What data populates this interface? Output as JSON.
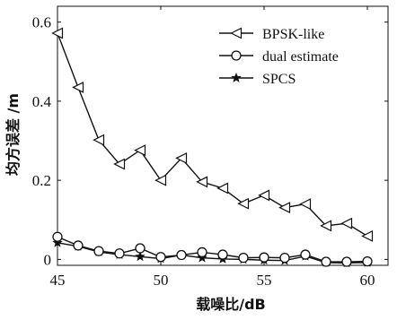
{
  "chart_data": {
    "type": "line",
    "title": "",
    "xlabel": "载噪比/dB",
    "ylabel": "均方误差 /m",
    "xlim": [
      45,
      61
    ],
    "ylim": [
      -0.015,
      0.64
    ],
    "x_ticks": [
      "45",
      "50",
      "55",
      "60"
    ],
    "y_ticks": [
      "0",
      "0.2",
      "0.4",
      "0.6"
    ],
    "legend_position": "top-right",
    "grid": false,
    "x": [
      45,
      46,
      47,
      48,
      49,
      50,
      51,
      52,
      53,
      54,
      55,
      56,
      57,
      58,
      59,
      60
    ],
    "series": [
      {
        "name": "BPSK-like",
        "marker": "triangle-left",
        "values": [
          0.572,
          0.435,
          0.302,
          0.241,
          0.276,
          0.2,
          0.256,
          0.196,
          0.18,
          0.141,
          0.162,
          0.131,
          0.14,
          0.085,
          0.091,
          0.059
        ]
      },
      {
        "name": "dual estimate",
        "marker": "circle",
        "values": [
          0.057,
          0.035,
          0.021,
          0.015,
          0.028,
          0.006,
          0.011,
          0.018,
          0.012,
          0.004,
          0.005,
          0.004,
          0.012,
          -0.006,
          -0.006,
          -0.005
        ]
      },
      {
        "name": "SPCS",
        "marker": "star",
        "values": [
          0.042,
          0.033,
          0.019,
          0.012,
          0.007,
          0.002,
          0.011,
          0.004,
          0.001,
          0.0,
          -0.002,
          -0.003,
          0.008,
          -0.008,
          -0.009,
          -0.008
        ]
      }
    ]
  }
}
